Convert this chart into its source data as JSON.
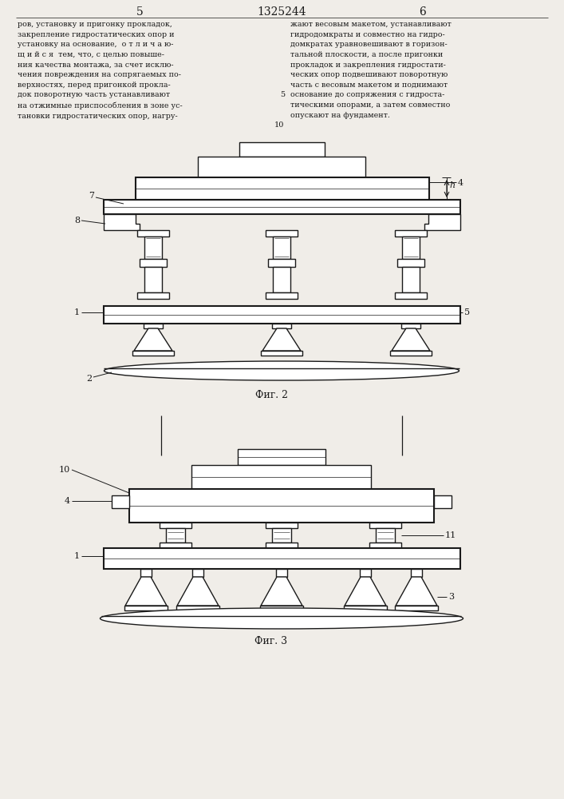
{
  "page_bg": "#f0ede8",
  "line_color": "#1a1a1a",
  "header_text": "1325244",
  "page_num_left": "5",
  "page_num_right": "6",
  "text_left": "ров, установку и пригонку прокладок,\nзакрепление гидростатических опор и\nустановку на основание,  о т л и ч а ю-\nщ и й с я  тем, что, с целью повыше-\nния качества монтажа, за счет исклю-\nчения повреждения на сопрягаемых по-\nверхностях, перед пригонкой прокла-\nдок поворотную часть устанавливают\nна отжимные приспособления в зоне ус-\nтановки гидростатических опор, нагру-",
  "text_right": "жают весовым макетом, устанавливают\nгидродомкраты и совместно на гидро-\nдомкратах уравновешивают в горизон-\nтальной плоскости, а после пригонки\nпрокладок и закрепления гидростати-\nческих опор подвешивают поворотную\nчасть с весовым макетом и поднимают\nоснование до сопряжения с гидроста-\nтическими опорами, а затем совместно\nопускают на фундамент.",
  "fig2_label": "Фиг. 2",
  "fig3_label": "Фиг. 3"
}
